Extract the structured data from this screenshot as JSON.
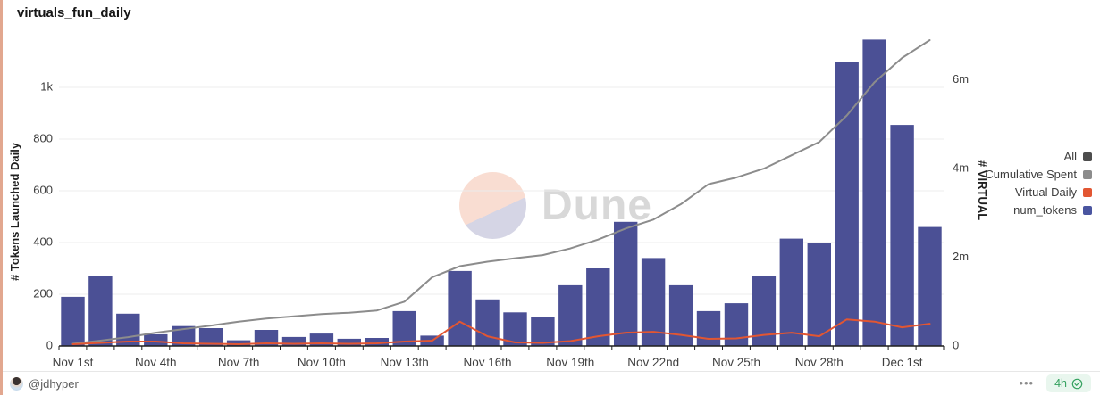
{
  "title": "virtuals_fun_daily",
  "watermark": {
    "brand": "Dune"
  },
  "colors": {
    "bar": "#4b5095",
    "cumulative_line": "#8c8c8c",
    "virtual_daily_line": "#e25632",
    "legend_all": "#4d4d4d",
    "grid": "#ececec",
    "axis_line": "#1f1f1f",
    "tick_text": "#3f3f3f",
    "left_border_accent": "#e2a78f",
    "badge_green": "#35a15f"
  },
  "legend": [
    {
      "label": "All",
      "color": "#4d4d4d"
    },
    {
      "label": "Cumulative Spent",
      "color": "#8c8c8c"
    },
    {
      "label": "Virtual Daily",
      "color": "#e25632"
    },
    {
      "label": "num_tokens",
      "color": "#4a55a0"
    }
  ],
  "footer": {
    "author": "@jdhyper",
    "menu": "•••",
    "refresh_badge": "4h"
  },
  "chart_data": {
    "type": "bar",
    "x": [
      "Nov 1",
      "Nov 2",
      "Nov 3",
      "Nov 4",
      "Nov 5",
      "Nov 6",
      "Nov 7",
      "Nov 8",
      "Nov 9",
      "Nov 10",
      "Nov 11",
      "Nov 12",
      "Nov 13",
      "Nov 14",
      "Nov 15",
      "Nov 16",
      "Nov 17",
      "Nov 18",
      "Nov 19",
      "Nov 20",
      "Nov 21",
      "Nov 22",
      "Nov 23",
      "Nov 24",
      "Nov 25",
      "Nov 26",
      "Nov 27",
      "Nov 28",
      "Nov 29",
      "Nov 30",
      "Dec 1",
      "Dec 2"
    ],
    "x_axis_labels": [
      "Nov 1st",
      "Nov 4th",
      "Nov 7th",
      "Nov 10th",
      "Nov 13th",
      "Nov 16th",
      "Nov 19th",
      "Nov 22nd",
      "Nov 25th",
      "Nov 28th",
      "Dec 1st"
    ],
    "x_label_every": 3,
    "series": [
      {
        "name": "num_tokens",
        "type": "bar",
        "axis": "left",
        "color": "#4b5095",
        "values": [
          190,
          270,
          125,
          45,
          77,
          69,
          22,
          62,
          35,
          48,
          28,
          31,
          135,
          40,
          290,
          180,
          130,
          112,
          235,
          300,
          480,
          340,
          235,
          135,
          165,
          270,
          415,
          400,
          1100,
          1185,
          855,
          460
        ]
      },
      {
        "name": "Cumulative Spent",
        "type": "line",
        "axis": "right",
        "color": "#8c8c8c",
        "values": [
          50000,
          120000,
          200000,
          300000,
          380000,
          460000,
          550000,
          620000,
          670000,
          720000,
          750000,
          800000,
          1000000,
          1550000,
          1800000,
          1900000,
          1980000,
          2050000,
          2200000,
          2400000,
          2650000,
          2850000,
          3200000,
          3650000,
          3800000,
          4000000,
          4300000,
          4600000,
          5200000,
          5950000,
          6500000,
          6900000
        ]
      },
      {
        "name": "Virtual Daily",
        "type": "line",
        "axis": "right",
        "color": "#e25632",
        "values": [
          40000,
          70000,
          100000,
          100000,
          60000,
          50000,
          40000,
          60000,
          50000,
          60000,
          50000,
          60000,
          100000,
          120000,
          550000,
          220000,
          80000,
          70000,
          110000,
          220000,
          300000,
          320000,
          250000,
          160000,
          170000,
          250000,
          300000,
          220000,
          600000,
          550000,
          420000,
          500000
        ]
      }
    ],
    "left_axis": {
      "label": "# Tokens Launched Daily",
      "max": 1200,
      "ticks": [
        {
          "label": "0",
          "value": 0
        },
        {
          "label": "200",
          "value": 200
        },
        {
          "label": "400",
          "value": 400
        },
        {
          "label": "600",
          "value": 600
        },
        {
          "label": "800",
          "value": 800
        },
        {
          "label": "1k",
          "value": 1000
        }
      ]
    },
    "right_axis": {
      "label": "# VIRTUAL",
      "max": 7000000,
      "ticks": [
        {
          "label": "0",
          "value": 0
        },
        {
          "label": "2m",
          "value": 2000000
        },
        {
          "label": "4m",
          "value": 4000000
        },
        {
          "label": "6m",
          "value": 6000000
        }
      ]
    },
    "grid": true,
    "legend_position": "right"
  }
}
